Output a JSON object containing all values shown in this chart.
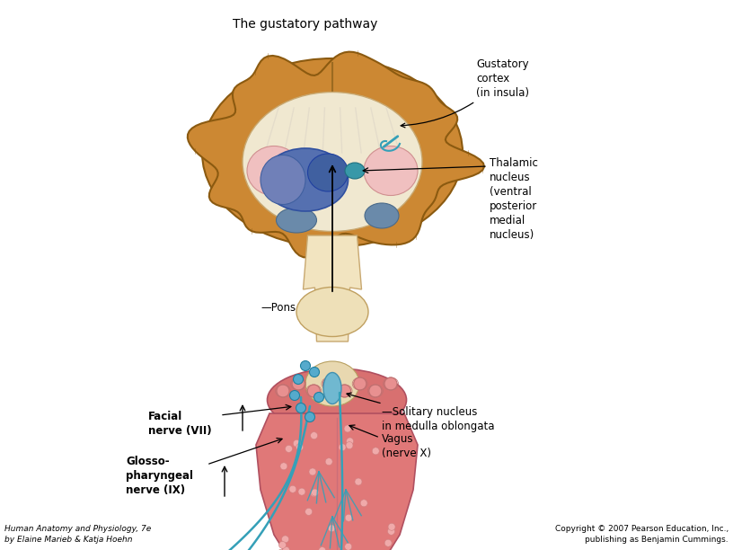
{
  "title": "The gustatory pathway",
  "background_color": "#ffffff",
  "labels": {
    "gustatory_cortex": "Gustatory\ncortex\n(in insula)",
    "thalamic_nucleus": "Thalamic\nnucleus\n(ventral\nposterior\nmedial\nnucleus)",
    "pons": "—Pons",
    "solitary_nucleus": "—Solitary nucleus\nin medulla oblongata",
    "facial_nerve": "Facial\nnerve (VII)",
    "glossopharyngeal": "Glosso-\npharyngeal\nnerve (IX)",
    "vagus": "Vagus\n(nerve X)",
    "bottom_left": "Human Anatomy and Physiology, 7e\nby Elaine Marieb & Katja Hoehn",
    "bottom_right": "Copyright © 2007 Pearson Education, Inc.,\npublishing as Benjamin Cummings."
  },
  "colors": {
    "brain_outer": "#CC8833",
    "brain_gyri": "#C07820",
    "brain_inner_white": "#F5EDD8",
    "brainstem_color": "#F2E4C0",
    "thalamus_blue": "#6878B8",
    "thalamus_light": "#8898C8",
    "pathway": "#35A0B8",
    "tongue_pink": "#E07878",
    "tongue_dark": "#C85868",
    "papilla_light": "#EEAAAA",
    "label_color": "#000000"
  },
  "figsize": [
    8.16,
    6.12
  ],
  "dpi": 100
}
